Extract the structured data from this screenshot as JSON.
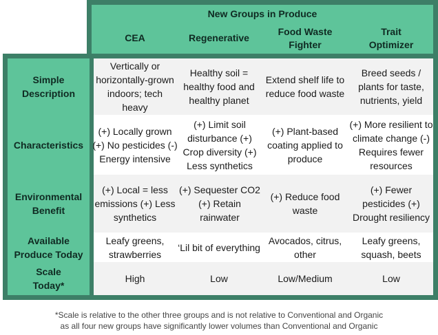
{
  "title": "New Groups in Produce",
  "columns": [
    "CEA",
    "Regenerative",
    "Food Waste Fighter",
    "Trait Optimizer"
  ],
  "rows": [
    {
      "label": "Simple Description",
      "cells": [
        "Vertically or horizontally-grown indoors; tech heavy",
        "Healthy soil = healthy food and healthy planet",
        "Extend shelf life to reduce food waste",
        "Breed seeds / plants for taste, nutrients, yield"
      ]
    },
    {
      "label": "Characteristics",
      "cells": [
        "(+) Locally grown (+) No pesticides (-) Energy intensive",
        "(+) Limit soil disturbance (+) Crop diversity (+) Less synthetics",
        "(+) Plant-based coating applied to produce",
        "(+) More resilient to climate change (-) Requires fewer resources"
      ]
    },
    {
      "label": "Environmental Benefit",
      "cells": [
        "(+) Local = less emissions (+) Less synthetics",
        "(+) Sequester CO2 (+) Retain rainwater",
        "(+) Reduce food waste",
        "(+) Fewer pesticides (+) Drought resiliency"
      ]
    },
    {
      "label": "Available Produce Today",
      "cells": [
        "Leafy greens, strawberries",
        "‘Lil bit of everything",
        "Avocados, citrus, other",
        "Leafy greens, squash, beets"
      ]
    },
    {
      "label": "Scale Today*",
      "cells": [
        "High",
        "Low",
        "Low/Medium",
        "Low"
      ]
    }
  ],
  "footnote": {
    "line1": "*Scale is relative to the other three groups and is not relative to Conventional and Organic",
    "line2": "as all four new groups have significantly lower volumes than Conventional and Organic"
  },
  "colors": {
    "dark_green": "#3d7f67",
    "light_green": "#5ec49a",
    "row_shade": "#f2f2f2"
  }
}
